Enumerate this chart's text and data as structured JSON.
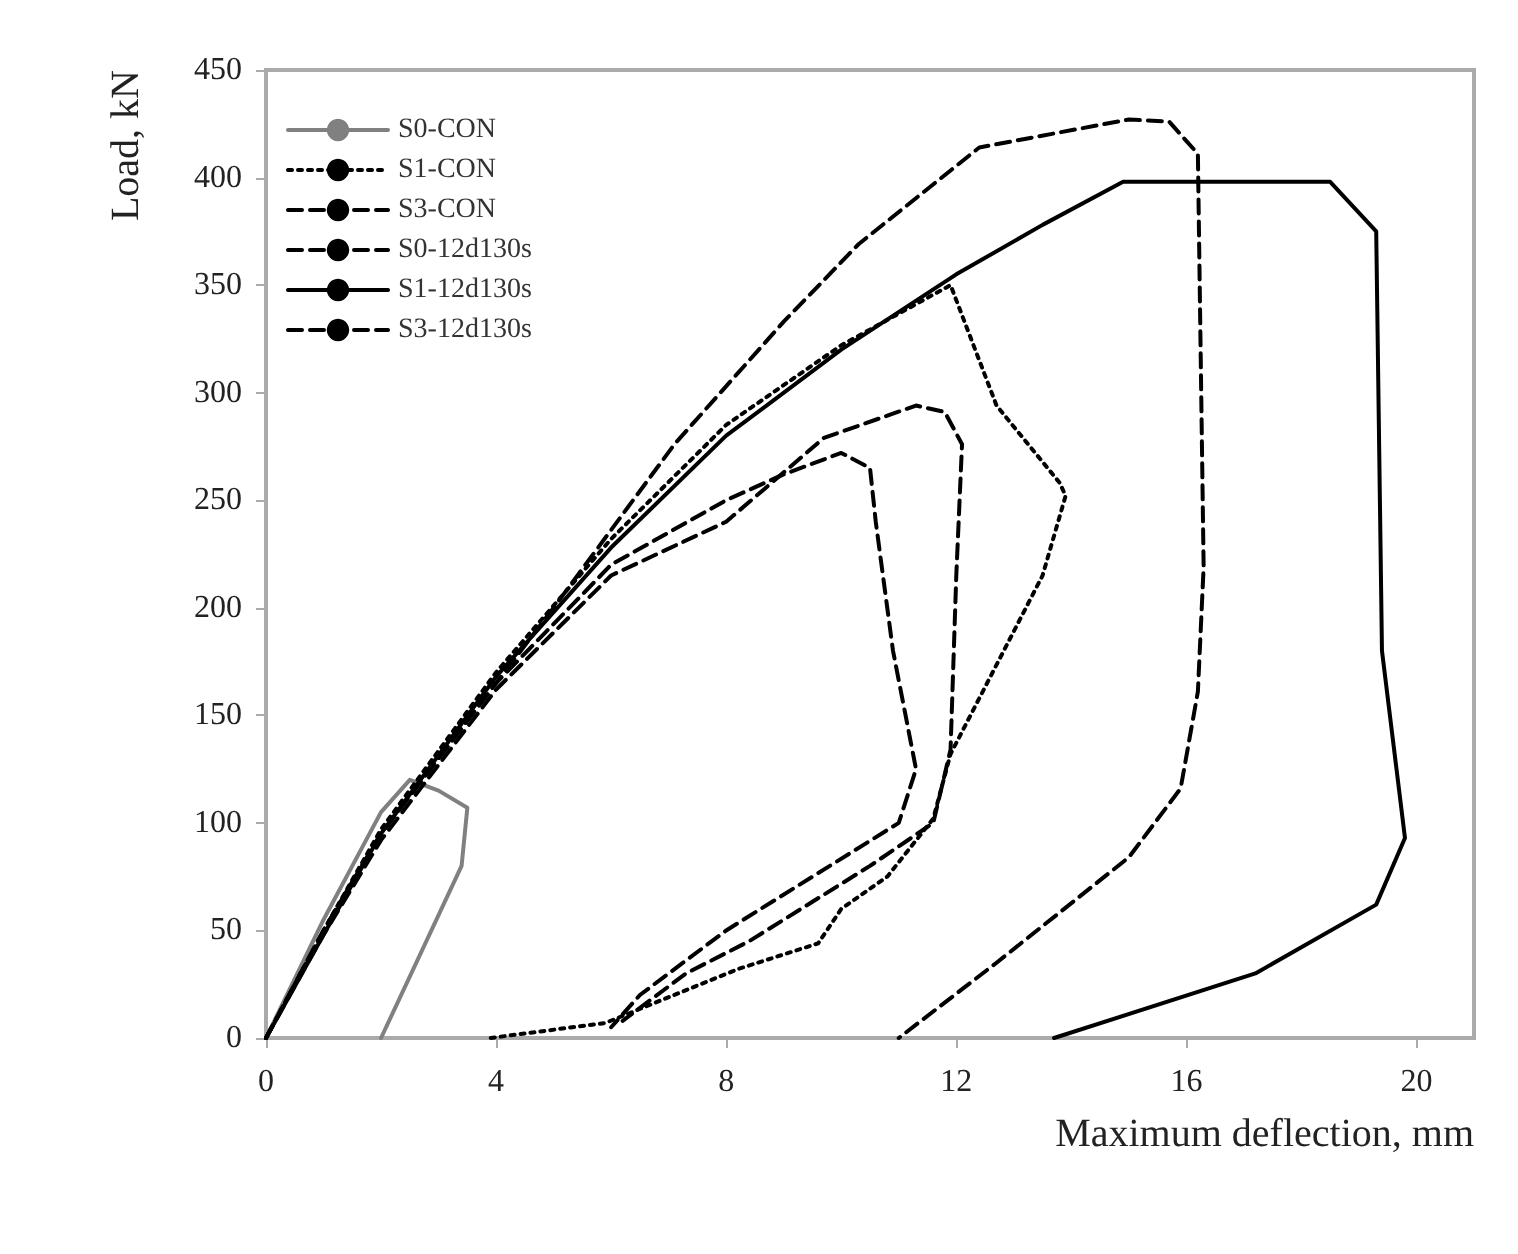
{
  "chart_data": {
    "type": "line",
    "xlabel": "Maximum deflection, mm",
    "ylabel": "Load, kN",
    "xlim": [
      0,
      21
    ],
    "ylim": [
      0,
      450
    ],
    "xticks": [
      0,
      4,
      8,
      12,
      16,
      20
    ],
    "yticks": [
      0,
      50,
      100,
      150,
      200,
      250,
      300,
      350,
      400,
      450
    ],
    "grid": false,
    "legend": "top left",
    "marker": "none",
    "series": [
      {
        "name": "S0-CON",
        "color": "#808080",
        "line_style": "solid",
        "x": [
          0,
          1,
          2,
          2.5,
          3.0,
          3.5,
          3.4,
          2.0
        ],
        "values": [
          0,
          55,
          105,
          120,
          115,
          107,
          80,
          0
        ]
      },
      {
        "name": "S1-CON",
        "color": "#000000",
        "line_style": "dotted",
        "x": [
          0,
          1,
          2,
          4,
          6,
          8,
          10,
          11.9,
          12.7,
          13.8,
          13.9,
          13.5,
          11.9,
          11.6,
          10.8,
          10,
          9.6,
          8.2,
          5.9,
          3.9
        ],
        "values": [
          0,
          50,
          97,
          170,
          232,
          285,
          322,
          350,
          294,
          258,
          252,
          215,
          132,
          102,
          75,
          60,
          44,
          32,
          7,
          0
        ]
      },
      {
        "name": "S3-CON",
        "color": "#000000",
        "line_style": "dashed",
        "x": [
          0,
          1,
          2,
          4,
          6,
          8,
          9.7,
          11.3,
          11.8,
          12.1,
          12.0,
          11.9,
          11.6,
          10.5,
          9.3,
          8.4,
          7.3,
          6.2
        ],
        "values": [
          0,
          48,
          92,
          162,
          215,
          240,
          279,
          294,
          291,
          276,
          215,
          134,
          100,
          80,
          60,
          45,
          30,
          8
        ]
      },
      {
        "name": "S0-12d130s",
        "color": "#000000",
        "line_style": "dashed",
        "x": [
          0,
          1,
          2,
          4,
          6,
          8,
          9,
          10,
          10.5,
          10.6,
          10.9,
          11.3,
          11.0,
          9.5,
          8,
          6.5,
          6
        ],
        "values": [
          0,
          50,
          95,
          165,
          220,
          250,
          262,
          272,
          265,
          240,
          180,
          125,
          100,
          75,
          50,
          20,
          5
        ]
      },
      {
        "name": "S1-12d130s",
        "color": "#000000",
        "line_style": "solid",
        "x": [
          0,
          1,
          2,
          4,
          6,
          8,
          10,
          12,
          13.5,
          14.9,
          18.5,
          19.3,
          19.4,
          19.8,
          19.3,
          17.2,
          13.7
        ],
        "values": [
          0,
          48,
          95,
          168,
          228,
          280,
          320,
          355,
          378,
          398,
          398,
          375,
          180,
          93,
          62,
          30,
          0
        ]
      },
      {
        "name": "S3-12d130s",
        "color": "#000000",
        "line_style": "dashed",
        "x": [
          0,
          1,
          2,
          2.8,
          5,
          7.1,
          9,
          10.3,
          12.4,
          15,
          15.7,
          16.2,
          16.3,
          16.2,
          15.9,
          15,
          12.7,
          11
        ],
        "values": [
          0,
          50,
          95,
          123,
          200,
          276,
          333,
          369,
          414,
          427,
          426,
          411,
          219,
          161,
          116,
          84,
          35,
          0
        ]
      }
    ]
  }
}
